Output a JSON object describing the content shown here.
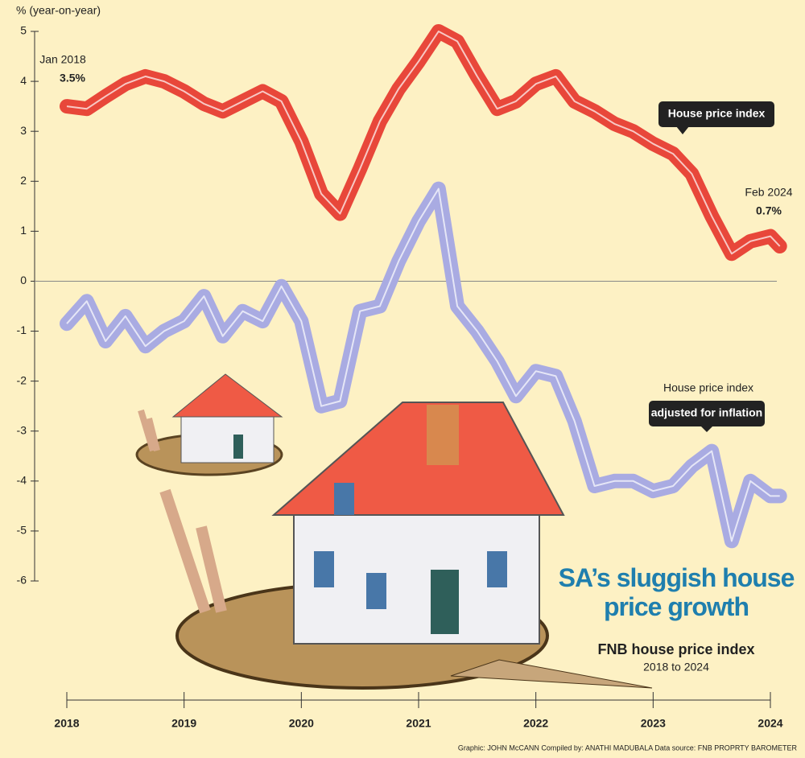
{
  "chart_data": {
    "type": "line",
    "title": "SA’s sluggish house price growth",
    "subtitle": "FNB house price index",
    "period": "2018 to 2024",
    "y_label": "% (year-on-year)",
    "credit": "Graphic: JOHN McCANN  Compiled by: ANATHI MADUBALA  Data source: FNB PROPRTY BAROMETER",
    "start_label": "Jan 2018",
    "start_value": "3.5%",
    "end_label": "Feb 2024",
    "end_value": "0.7%",
    "second_callout_top": "House price index",
    "x": [
      2018,
      2018.17,
      2018.33,
      2018.5,
      2018.67,
      2018.83,
      2019,
      2019.17,
      2019.33,
      2019.5,
      2019.67,
      2019.83,
      2020,
      2020.17,
      2020.33,
      2020.5,
      2020.67,
      2020.83,
      2021,
      2021.17,
      2021.33,
      2021.5,
      2021.67,
      2021.83,
      2022,
      2022.17,
      2022.33,
      2022.5,
      2022.67,
      2022.83,
      2023,
      2023.17,
      2023.33,
      2023.5,
      2023.67,
      2023.83,
      2024,
      2024.08
    ],
    "series": [
      {
        "name": "House price index",
        "color": "#e8473a",
        "values": [
          3.5,
          3.45,
          3.7,
          3.95,
          4.1,
          4.0,
          3.8,
          3.55,
          3.4,
          3.6,
          3.8,
          3.6,
          2.8,
          1.75,
          1.35,
          2.25,
          3.2,
          3.85,
          4.4,
          5.0,
          4.8,
          4.1,
          3.45,
          3.6,
          3.95,
          4.1,
          3.6,
          3.4,
          3.15,
          3.0,
          2.75,
          2.55,
          2.15,
          1.3,
          0.55,
          0.8,
          0.9,
          0.7
        ]
      },
      {
        "name": "adjusted for inflation",
        "color": "#a9abe2",
        "values": [
          -0.85,
          -0.4,
          -1.2,
          -0.7,
          -1.3,
          -1.0,
          -0.8,
          -0.3,
          -1.1,
          -0.6,
          -0.8,
          -0.1,
          -0.8,
          -2.5,
          -2.4,
          -0.6,
          -0.5,
          0.4,
          1.2,
          1.85,
          -0.5,
          -1.0,
          -1.6,
          -2.3,
          -1.8,
          -1.9,
          -2.8,
          -4.1,
          -4.0,
          -4.0,
          -4.2,
          -4.1,
          -3.7,
          -3.4,
          -5.2,
          -4.0,
          -4.3,
          -4.3
        ]
      }
    ],
    "xlim": [
      2018,
      2024
    ],
    "xticks": [
      2018,
      2019,
      2020,
      2021,
      2022,
      2023,
      2024
    ],
    "ylim": [
      -6,
      5
    ],
    "yticks": [
      -6,
      -5,
      -4,
      -3,
      -2,
      -1,
      0,
      1,
      2,
      3,
      4,
      5
    ]
  }
}
